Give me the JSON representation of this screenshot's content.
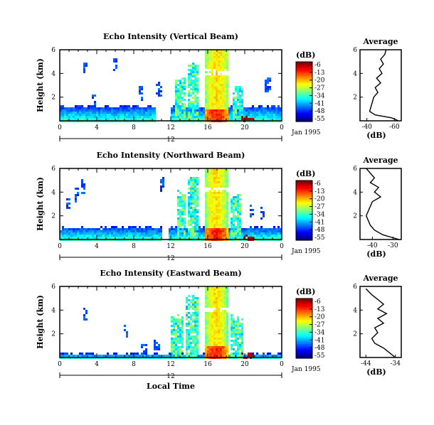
{
  "chart_data": [
    {
      "type": "heatmap",
      "title": "Echo Intensity (Vertical Beam)",
      "ylabel": "Height (km)",
      "x_ticks": [
        "0",
        "4",
        "8",
        "12",
        "16",
        "20",
        "0"
      ],
      "y_ticks": [
        "6",
        "4",
        "2"
      ],
      "date_mid": "12",
      "date_label": "Jan 1995",
      "xlim_hours": [
        0,
        24
      ],
      "ylim_km": [
        0,
        6
      ],
      "colorbar": {
        "unit": "(dB)",
        "ticks": [
          "-6",
          "-13",
          "-20",
          "-27",
          "-34",
          "-41",
          "-48",
          "-55"
        ]
      },
      "average_profile": {
        "title": "Average",
        "x_ticks": [
          "-40",
          "-60"
        ],
        "y_ticks": [
          "6",
          "4",
          "2"
        ],
        "xlabel": "(dB)",
        "xlim": [
          -35,
          -65
        ],
        "points": [
          [
            -54,
            6.0
          ],
          [
            -53,
            5.6
          ],
          [
            -50,
            5.2
          ],
          [
            -52,
            4.8
          ],
          [
            -49,
            4.4
          ],
          [
            -51,
            4.0
          ],
          [
            -47,
            3.6
          ],
          [
            -50,
            3.2
          ],
          [
            -46,
            2.8
          ],
          [
            -48,
            2.4
          ],
          [
            -45,
            2.0
          ],
          [
            -44,
            1.6
          ],
          [
            -43,
            1.2
          ],
          [
            -42,
            0.8
          ],
          [
            -46,
            0.5
          ],
          [
            -58,
            0.25
          ],
          [
            -63,
            0.0
          ]
        ]
      },
      "field": {
        "base_depth_km": 1.3,
        "base_gap_hours": [
          10.2,
          11.8
        ],
        "precip_band_hours": [
          15.6,
          18.2
        ],
        "secondary_columns": [
          [
            12.4,
            13.4,
            3.5
          ],
          [
            13.8,
            14.8,
            5.0
          ],
          [
            18.6,
            19.8,
            3.0
          ]
        ],
        "bright_band_km": 4.2,
        "scattered": [
          [
            2.7,
            5.0
          ],
          [
            5.9,
            5.4
          ],
          [
            8.6,
            3.0
          ],
          [
            3.5,
            2.4
          ],
          [
            10.6,
            3.4
          ],
          [
            22.4,
            3.7
          ]
        ]
      }
    },
    {
      "type": "heatmap",
      "title": "Echo Intensity (Northward Beam)",
      "ylabel": "Height (km)",
      "x_ticks": [
        "0",
        "4",
        "8",
        "12",
        "16",
        "20",
        "0"
      ],
      "y_ticks": [
        "6",
        "4",
        "2"
      ],
      "date_mid": "12",
      "date_label": "Jan 1995",
      "xlim_hours": [
        0,
        24
      ],
      "ylim_km": [
        0,
        6
      ],
      "colorbar": {
        "unit": "(dB)",
        "ticks": [
          "-6",
          "-13",
          "-20",
          "-27",
          "-34",
          "-41",
          "-48",
          "-55"
        ]
      },
      "average_profile": {
        "title": "Average",
        "x_ticks": [
          "-40",
          "-30"
        ],
        "y_ticks": [
          "6",
          "4",
          "2"
        ],
        "xlabel": "(dB)",
        "xlim": [
          -46,
          -26
        ],
        "points": [
          [
            -43,
            6.0
          ],
          [
            -41,
            5.6
          ],
          [
            -39,
            5.2
          ],
          [
            -41,
            4.8
          ],
          [
            -37,
            4.4
          ],
          [
            -39,
            4.0
          ],
          [
            -36,
            3.6
          ],
          [
            -40,
            3.2
          ],
          [
            -41,
            2.8
          ],
          [
            -42,
            2.4
          ],
          [
            -43,
            2.0
          ],
          [
            -42,
            1.6
          ],
          [
            -41,
            1.2
          ],
          [
            -39,
            0.8
          ],
          [
            -35,
            0.4
          ],
          [
            -30,
            0.15
          ],
          [
            -27,
            0.0
          ]
        ]
      },
      "field": {
        "base_depth_km": 1.1,
        "base_gap_hours": [
          10.9,
          11.6
        ],
        "precip_band_hours": [
          15.6,
          18.0
        ],
        "secondary_columns": [
          [
            12.6,
            13.5,
            4.0
          ],
          [
            13.8,
            14.8,
            5.5
          ],
          [
            18.4,
            19.5,
            3.8
          ]
        ],
        "bright_band_km": 4.3,
        "scattered": [
          [
            1.8,
            4.5
          ],
          [
            2.4,
            5.2
          ],
          [
            0.8,
            3.5
          ],
          [
            11.0,
            5.3
          ],
          [
            20.6,
            3.1
          ],
          [
            21.8,
            2.9
          ]
        ]
      }
    },
    {
      "type": "heatmap",
      "title": "Echo Intensity (Eastward Beam)",
      "ylabel": "Height (km)",
      "x_ticks": [
        "0",
        "4",
        "8",
        "12",
        "16",
        "20",
        "0"
      ],
      "y_ticks": [
        "6",
        "4",
        "2"
      ],
      "date_mid": "12",
      "date_label": "Jan 1995",
      "xlabel": "Local Time",
      "xlim_hours": [
        0,
        24
      ],
      "ylim_km": [
        0,
        6
      ],
      "colorbar": {
        "unit": "(dB)",
        "ticks": [
          "-6",
          "-13",
          "-20",
          "-27",
          "-34",
          "-41",
          "-48",
          "-55"
        ]
      },
      "average_profile": {
        "title": "Average",
        "x_ticks": [
          "-44",
          "-34"
        ],
        "y_ticks": [
          "6",
          "4",
          "2"
        ],
        "xlabel": "(dB)",
        "xlim": [
          -46,
          -32
        ],
        "points": [
          [
            -44,
            5.8
          ],
          [
            -42,
            5.3
          ],
          [
            -40,
            4.9
          ],
          [
            -38,
            4.5
          ],
          [
            -40,
            4.1
          ],
          [
            -37,
            3.7
          ],
          [
            -40,
            3.3
          ],
          [
            -38,
            2.9
          ],
          [
            -41,
            2.5
          ],
          [
            -40,
            2.1
          ],
          [
            -42,
            1.6
          ],
          [
            -41,
            1.2
          ],
          [
            -38,
            0.8
          ],
          [
            -36,
            0.4
          ],
          [
            -34,
            0.0
          ]
        ]
      },
      "field": {
        "base_depth_km": 0.4,
        "base_gap_hours": [
          24,
          24
        ],
        "precip_band_hours": [
          15.6,
          18.0
        ],
        "secondary_columns": [
          [
            12.0,
            13.2,
            3.6
          ],
          [
            13.4,
            14.8,
            5.2
          ],
          [
            18.4,
            19.8,
            3.4
          ]
        ],
        "bright_band_km": 4.1,
        "scattered": [
          [
            2.6,
            4.4
          ],
          [
            7.0,
            3.0
          ],
          [
            9.0,
            1.2
          ],
          [
            10.4,
            1.8
          ]
        ]
      }
    }
  ]
}
